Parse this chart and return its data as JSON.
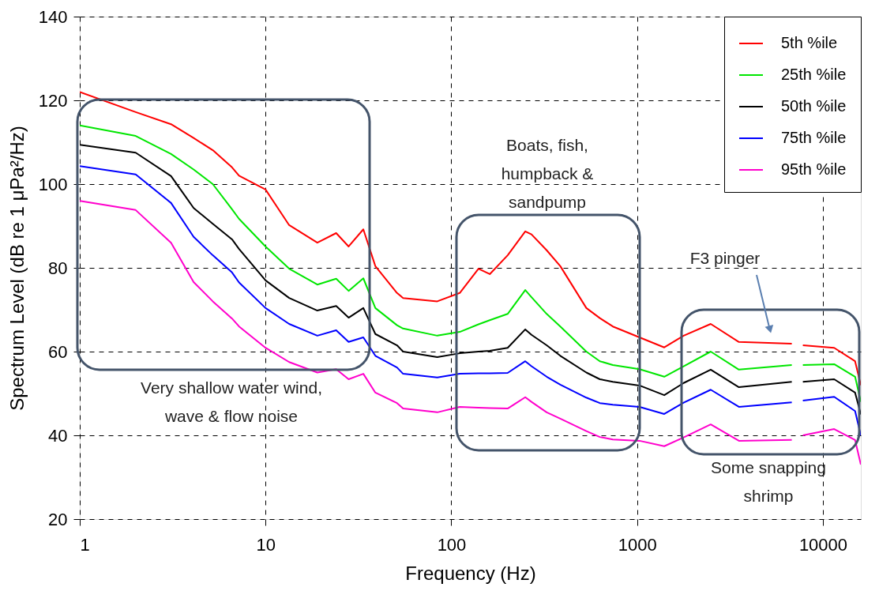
{
  "chart_data": {
    "type": "line",
    "xlabel": "Frequency (Hz)",
    "ylabel": "Spectrum Level (dB re 1 μPa²/Hz)",
    "x": [
      1,
      2,
      3.1,
      4.1,
      5.2,
      6.6,
      7.2,
      10,
      13.4,
      19,
      24,
      28,
      33.6,
      39,
      51,
      55,
      84,
      111,
      140,
      161,
      201,
      250,
      270,
      326,
      386,
      533,
      630,
      740,
      1030,
      1400,
      1780,
      2490,
      3530,
      6800,
      7300,
      7800,
      11500,
      14900,
      16000
    ],
    "series": [
      {
        "name": "5th %ile",
        "color": "#ff0000",
        "values": [
          122,
          117.2,
          114.3,
          111,
          108.1,
          104,
          102,
          98.7,
          90.2,
          86,
          88.3,
          85.1,
          89.2,
          80.4,
          74,
          72.8,
          72,
          74,
          79.8,
          78.5,
          83,
          88.7,
          88,
          84.2,
          80.4,
          70.4,
          68,
          66,
          63.4,
          61,
          63.8,
          66.6,
          62.3,
          61.9,
          null,
          61.5,
          60.9,
          57.7,
          52
        ]
      },
      {
        "name": "25th %ile",
        "color": "#00e600",
        "values": [
          114,
          111.5,
          107.2,
          103.5,
          100,
          94,
          91.7,
          85.1,
          79.8,
          76,
          77.4,
          74.5,
          77.5,
          70.4,
          66.3,
          65.5,
          63.8,
          64.7,
          66.5,
          67.5,
          69,
          74.7,
          73,
          69,
          66,
          60,
          57.7,
          56.8,
          55.8,
          54,
          56.5,
          60,
          55.7,
          56.8,
          null,
          56.8,
          57,
          54,
          48
        ]
      },
      {
        "name": "50th %ile",
        "color": "#000000",
        "values": [
          109.4,
          107.5,
          101.9,
          94.3,
          90.5,
          86.8,
          84.5,
          77,
          72.8,
          69.8,
          70.9,
          68.1,
          70.4,
          64.2,
          61.5,
          60,
          58.7,
          59.6,
          60,
          60.2,
          60.9,
          65.3,
          64,
          61.5,
          59,
          55,
          53.4,
          52.8,
          51.9,
          49.6,
          52.5,
          55.7,
          51.5,
          52.8,
          null,
          52.8,
          53.4,
          50.2,
          45
        ]
      },
      {
        "name": "75th %ile",
        "color": "#0000ff",
        "values": [
          104.3,
          102.3,
          95.5,
          87.4,
          83,
          78.9,
          76.5,
          70.4,
          66.6,
          63.8,
          65.1,
          62.3,
          63.4,
          59,
          56.2,
          54.7,
          53.8,
          54.7,
          54.8,
          54.8,
          54.9,
          57.7,
          56.5,
          54,
          52.1,
          49,
          47.7,
          47.3,
          46.8,
          45.1,
          47.8,
          50.9,
          46.8,
          47.9,
          null,
          48.3,
          49.2,
          45.8,
          40
        ]
      },
      {
        "name": "95th %ile",
        "color": "#ff00cc",
        "values": [
          96,
          93.8,
          86,
          76.6,
          72,
          67.9,
          66,
          60.9,
          57.5,
          55,
          55.8,
          53.4,
          54.7,
          50.2,
          47.7,
          46.4,
          45.5,
          46.8,
          46.6,
          46.5,
          46.4,
          49.1,
          48,
          45.5,
          44,
          41,
          39.6,
          39,
          38.7,
          37.4,
          39.5,
          42.6,
          38.7,
          38.9,
          null,
          40,
          41.5,
          38.9,
          33
        ]
      }
    ],
    "annotations": [
      "Very shallow water wind,\nwave & flow noise",
      "Boats, fish,\nhumpback &\nsandpump",
      "F3 pinger",
      "Some snapping\nshrimp"
    ],
    "log": "x",
    "xlim": [
      1,
      16000
    ],
    "xticks": [
      1,
      10,
      100,
      1000,
      10000
    ],
    "ylim": [
      20,
      140
    ],
    "yticks": [
      20,
      40,
      60,
      80,
      100,
      120,
      140
    ],
    "grid": true,
    "legend": "top right",
    "line_style": "solid",
    "marker": "none"
  }
}
